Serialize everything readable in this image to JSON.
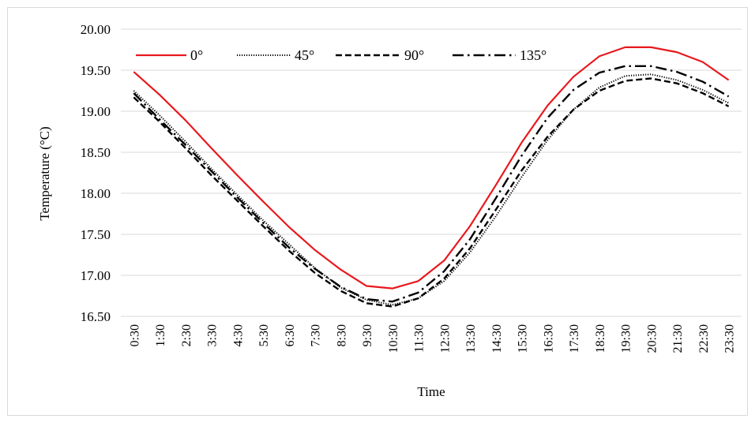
{
  "chart_data": {
    "type": "line",
    "xlabel": "Time",
    "ylabel": "Temperature (°C)",
    "ylim": [
      16.5,
      20.0
    ],
    "y_ticks": [
      "16.50",
      "17.00",
      "17.50",
      "18.00",
      "18.50",
      "19.00",
      "19.50",
      "20.00"
    ],
    "grid": "horizontal",
    "legend_position": "top-left",
    "categories": [
      "0:30",
      "1:30",
      "2:30",
      "3:30",
      "4:30",
      "5:30",
      "6:30",
      "7:30",
      "8:30",
      "9:30",
      "10:30",
      "11:30",
      "12:30",
      "13:30",
      "14:30",
      "15:30",
      "16:30",
      "17:30",
      "18:30",
      "19:30",
      "20:30",
      "21:30",
      "22:30",
      "23:30"
    ],
    "series": [
      {
        "name": "0°",
        "color": "#e8191e",
        "dash": "solid",
        "values": [
          19.48,
          19.2,
          18.89,
          18.55,
          18.22,
          17.9,
          17.59,
          17.31,
          17.07,
          16.87,
          16.84,
          16.93,
          17.18,
          17.6,
          18.1,
          18.62,
          19.07,
          19.42,
          19.67,
          19.78,
          19.78,
          19.72,
          19.6,
          19.38
        ]
      },
      {
        "name": "45°",
        "color": "#000000",
        "dash": "dotted",
        "values": [
          19.25,
          18.95,
          18.63,
          18.3,
          17.98,
          17.67,
          17.38,
          17.09,
          16.85,
          16.7,
          16.64,
          16.72,
          16.93,
          17.28,
          17.72,
          18.2,
          18.65,
          19.02,
          19.29,
          19.43,
          19.45,
          19.38,
          19.26,
          19.1
        ]
      },
      {
        "name": "90°",
        "color": "#000000",
        "dash": "dashed",
        "values": [
          19.17,
          18.87,
          18.55,
          18.22,
          17.91,
          17.6,
          17.3,
          17.03,
          16.81,
          16.66,
          16.62,
          16.72,
          16.96,
          17.33,
          17.8,
          18.28,
          18.69,
          19.02,
          19.25,
          19.37,
          19.4,
          19.34,
          19.22,
          19.06
        ]
      },
      {
        "name": "135°",
        "color": "#000000",
        "dash": "dashdot",
        "values": [
          19.22,
          18.9,
          18.59,
          18.27,
          17.95,
          17.64,
          17.34,
          17.08,
          16.86,
          16.71,
          16.68,
          16.79,
          17.05,
          17.44,
          17.94,
          18.46,
          18.92,
          19.26,
          19.47,
          19.55,
          19.55,
          19.48,
          19.36,
          19.18
        ]
      }
    ]
  }
}
